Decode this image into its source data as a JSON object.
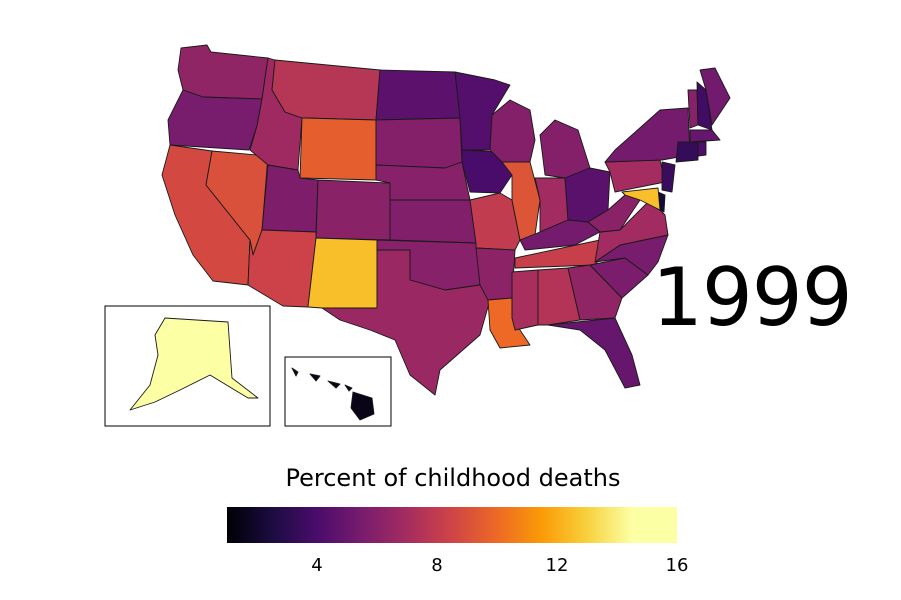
{
  "year": "1999",
  "legend": {
    "title": "Percent of childhood deaths",
    "min": 1,
    "max": 16,
    "ticks": [
      "4",
      "8",
      "12",
      "16"
    ],
    "tick_values": [
      4,
      8,
      12,
      16
    ],
    "colormap": "inferno",
    "stops": [
      "#000004",
      "#1b0c41",
      "#4a0c6b",
      "#781c6d",
      "#a52c60",
      "#cf4446",
      "#ed6925",
      "#fb9b06",
      "#f7d13d",
      "#fcffa4",
      "#fcffa4"
    ]
  },
  "insets": [
    "Alaska",
    "Hawaii"
  ],
  "states": [
    {
      "name": "Washington",
      "value": 6.3
    },
    {
      "name": "Oregon",
      "value": 5.5
    },
    {
      "name": "California",
      "value": 8.7
    },
    {
      "name": "Nevada",
      "value": 9.0
    },
    {
      "name": "Idaho",
      "value": 6.8
    },
    {
      "name": "Montana",
      "value": 7.6
    },
    {
      "name": "Wyoming",
      "value": 9.6
    },
    {
      "name": "Utah",
      "value": 5.7
    },
    {
      "name": "Colorado",
      "value": 6.1
    },
    {
      "name": "Arizona",
      "value": 8.4
    },
    {
      "name": "New Mexico",
      "value": 12.5
    },
    {
      "name": "North Dakota",
      "value": 4.6
    },
    {
      "name": "South Dakota",
      "value": 5.9
    },
    {
      "name": "Nebraska",
      "value": 6.0
    },
    {
      "name": "Kansas",
      "value": 5.8
    },
    {
      "name": "Oklahoma",
      "value": 6.0
    },
    {
      "name": "Texas",
      "value": 6.6
    },
    {
      "name": "Minnesota",
      "value": 4.3
    },
    {
      "name": "Iowa",
      "value": 4.0
    },
    {
      "name": "Missouri",
      "value": 8.0
    },
    {
      "name": "Arkansas",
      "value": 6.2
    },
    {
      "name": "Louisiana",
      "value": 10.0
    },
    {
      "name": "Wisconsin",
      "value": 5.9
    },
    {
      "name": "Illinois",
      "value": 9.2
    },
    {
      "name": "Michigan",
      "value": 5.9
    },
    {
      "name": "Indiana",
      "value": 6.9
    },
    {
      "name": "Ohio",
      "value": 4.5
    },
    {
      "name": "Kentucky",
      "value": 5.4
    },
    {
      "name": "Tennessee",
      "value": 8.2
    },
    {
      "name": "Mississippi",
      "value": 7.1
    },
    {
      "name": "Alabama",
      "value": 7.5
    },
    {
      "name": "Georgia",
      "value": 6.3
    },
    {
      "name": "Florida",
      "value": 4.9
    },
    {
      "name": "South Carolina",
      "value": 5.6
    },
    {
      "name": "North Carolina",
      "value": 5.5
    },
    {
      "name": "Virginia",
      "value": 6.9
    },
    {
      "name": "West Virginia",
      "value": 6.1
    },
    {
      "name": "Pennsylvania",
      "value": 7.0
    },
    {
      "name": "New York",
      "value": 5.4
    },
    {
      "name": "Vermont",
      "value": 6.0
    },
    {
      "name": "New Hampshire",
      "value": 3.7
    },
    {
      "name": "Maine",
      "value": 5.3
    },
    {
      "name": "Massachusetts",
      "value": 4.9
    },
    {
      "name": "Connecticut",
      "value": 3.3
    },
    {
      "name": "Rhode Island",
      "value": 4.1
    },
    {
      "name": "New Jersey",
      "value": 3.5
    },
    {
      "name": "Delaware",
      "value": 2.3
    },
    {
      "name": "Maryland",
      "value": 12.5
    },
    {
      "name": "Alaska",
      "value": 14.5
    },
    {
      "name": "Hawaii",
      "value": 1.5
    }
  ]
}
